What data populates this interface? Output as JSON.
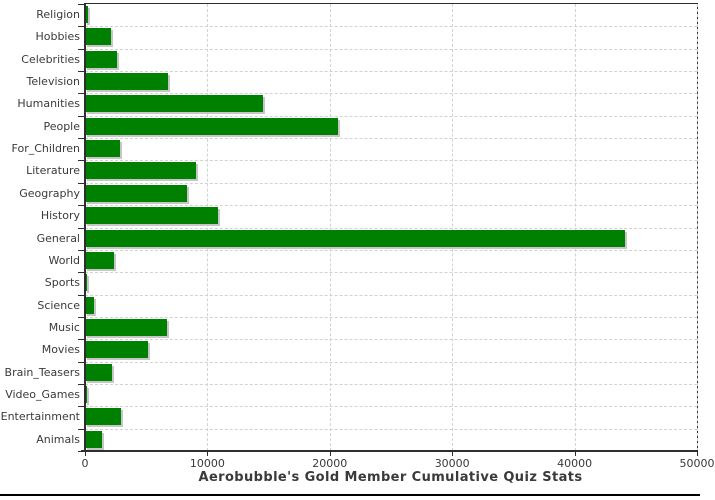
{
  "title": "Aerobubble's Gold Member Cumulative Quiz Stats",
  "colors": {
    "bar": "#008000",
    "bar_shadow": "#c6c6c6",
    "grid": "#d2d2d2",
    "axis": "#2e2e2e",
    "text": "#3a3a3a",
    "page_bg": "#ffffff",
    "bottom_rule": "#000000"
  },
  "chart_data": {
    "type": "bar",
    "orientation": "horizontal",
    "title": "Aerobubble's Gold Member Cumulative Quiz Stats",
    "xlabel": "",
    "ylabel": "",
    "xlim": [
      0,
      50000
    ],
    "x_ticks": [
      0,
      10000,
      20000,
      30000,
      40000,
      50000
    ],
    "x_tick_labels": [
      "0",
      "10000",
      "20000",
      "30000",
      "40000",
      "50000"
    ],
    "grid": "dashed-both-axes",
    "legend": false,
    "categories": [
      "Religion",
      "Hobbies",
      "Celebrities",
      "Television",
      "Humanities",
      "People",
      "For_Children",
      "Literature",
      "Geography",
      "History",
      "General",
      "World",
      "Sports",
      "Science",
      "Music",
      "Movies",
      "Brain_Teasers",
      "Video_Games",
      "Entertainment",
      "Animals"
    ],
    "values": [
      250,
      2120,
      2640,
      6760,
      14550,
      20690,
      2860,
      9070,
      8360,
      10890,
      44100,
      2390,
      130,
      760,
      6720,
      5150,
      2210,
      170,
      2940,
      1360
    ]
  }
}
